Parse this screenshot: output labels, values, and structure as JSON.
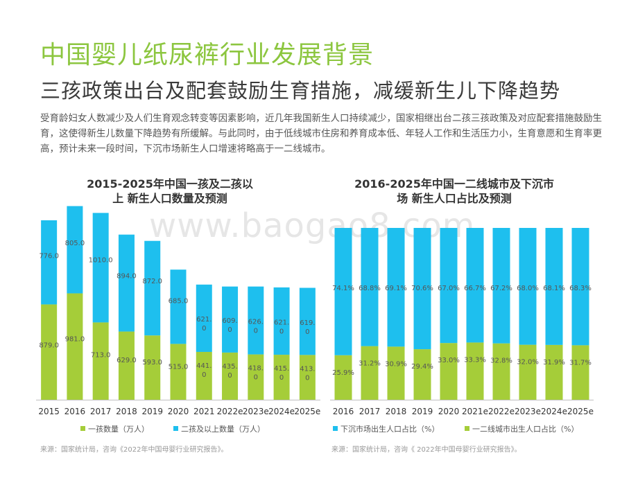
{
  "page": {
    "title": "中国婴儿纸尿裤行业发展背景",
    "subtitle": "三孩政策出台及配套鼓励生育措施，减缓新生儿下降趋势",
    "body": "受育龄妇女人数减少及人们生育观念转变等因素影响，近几年我国新生人口持续减少，国家相继出台二孩三孩政策及对应配套措施鼓励生育，这使得新生儿数量下降趋势有所缓解。与此同时，由于低线城市住房和养育成本低、年轻人工作和生活压力小，生育意愿和生育率更高，预计未来一段时间，下沉市场新生人口增速将略高于一二线城市。",
    "watermark": "www.baogao8.com",
    "colors": {
      "green": "#a5cd39",
      "blue": "#1ebfee",
      "title_green": "#8cc63f"
    }
  },
  "chart_data": [
    {
      "type": "bar",
      "stacked": true,
      "title_line1": "2015-2025年中国一孩及二孩以",
      "title_line2": "上 新生人口数量及预测",
      "categories": [
        "2015",
        "2016",
        "2017",
        "2018",
        "2019",
        "2020",
        "2021",
        "2022e",
        "2023e",
        "2024e",
        "2025e"
      ],
      "series": [
        {
          "name": "一孩数量（万人）",
          "color": "#a5cd39",
          "values": [
            879.0,
            981.0,
            713.0,
            629.0,
            593.0,
            515.0,
            441.0,
            435.0,
            418.0,
            415.0,
            413.0
          ],
          "labels": [
            "879.0",
            "981.0",
            "713.0",
            "629.0",
            "593.0",
            "515.0",
            "441.0",
            "435.0",
            "418.0",
            "415.0",
            "413.0"
          ]
        },
        {
          "name": "二孩及以上数量（万人）",
          "color": "#1ebfee",
          "values": [
            776.0,
            805.0,
            1010.0,
            894.0,
            872.0,
            685.0,
            621.0,
            609.0,
            626.0,
            621.0,
            619.0
          ],
          "labels": [
            "776.0",
            "805.0",
            "1010.0",
            "894.0",
            "872.0",
            "685.0",
            "621.0",
            "609.0",
            "626.0",
            "621.0",
            "619.0"
          ]
        }
      ],
      "ylim": [
        0,
        1800
      ],
      "legend": "bottom",
      "source": "来源：国家统计局，咨询《2022年中国母婴行业研究报告》。"
    },
    {
      "type": "bar",
      "stacked": true,
      "title_line1": "2016-2025年中国一二线城市及下沉市",
      "title_line2": "场 新生人口占比及预测",
      "categories": [
        "2016",
        "2017",
        "2018",
        "2019",
        "2020",
        "2021e",
        "2022e",
        "2023e",
        "2024e",
        "2025e"
      ],
      "series": [
        {
          "name": "一二线城市出生人口占比（%）",
          "color": "#a5cd39",
          "values": [
            25.9,
            31.2,
            30.9,
            29.4,
            33.0,
            33.3,
            32.8,
            32.0,
            31.9,
            31.7
          ],
          "labels": [
            "25.9%",
            "31.2%",
            "30.9%",
            "29.4%",
            "33.0%",
            "33.3%",
            "32.8%",
            "32.0%",
            "31.9%",
            "31.7%"
          ]
        },
        {
          "name": "下沉市场出生人口占比（%）",
          "color": "#1ebfee",
          "values": [
            74.1,
            68.8,
            69.1,
            70.6,
            67.0,
            66.7,
            67.2,
            68.0,
            68.1,
            68.3
          ],
          "labels": [
            "74.1%",
            "68.8%",
            "69.1%",
            "70.6%",
            "67.0%",
            "66.7%",
            "67.2%",
            "68.0%",
            "68.1%",
            "68.3%"
          ]
        }
      ],
      "ylim": [
        0,
        100
      ],
      "legend": "bottom",
      "legend_order": [
        "下沉市场出生人口占比（%）",
        "一二线城市出生人口占比（%）"
      ],
      "source": "来源：国家统计局，咨询《 2022年中国母婴行业研究报告》。"
    }
  ]
}
